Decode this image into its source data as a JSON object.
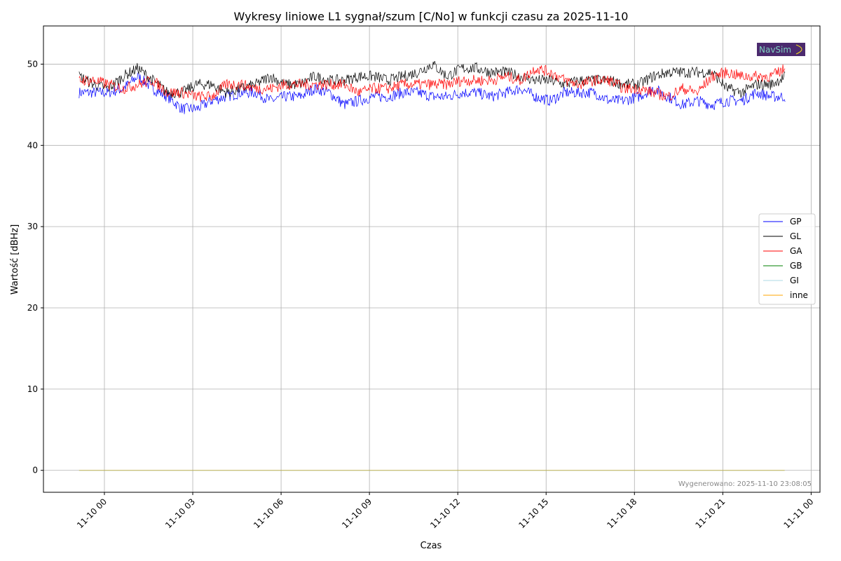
{
  "chart_data": {
    "type": "line",
    "title": "Wykresy liniowe L1 sygnał/szum [C/No] w funkcji czasu za 2025-11-10",
    "xlabel": "Czas",
    "ylabel": "Wartość [dBHz]",
    "x_unit": "hours since 2025-11-10 00:00",
    "xlim": [
      -2.07,
      24.3
    ],
    "ylim": [
      -2.7,
      54.7
    ],
    "grid": true,
    "legend_position": "center-right",
    "x_ticks": [
      {
        "value": 0,
        "label": "11-10 00"
      },
      {
        "value": 3,
        "label": "11-10 03"
      },
      {
        "value": 6,
        "label": "11-10 06"
      },
      {
        "value": 9,
        "label": "11-10 09"
      },
      {
        "value": 12,
        "label": "11-10 12"
      },
      {
        "value": 15,
        "label": "11-10 15"
      },
      {
        "value": 18,
        "label": "11-10 18"
      },
      {
        "value": 21,
        "label": "11-10 21"
      },
      {
        "value": 24,
        "label": "11-11 00"
      }
    ],
    "y_ticks": [
      0,
      10,
      20,
      30,
      40,
      50
    ],
    "x_start": -0.86,
    "x_step": 0.5,
    "series": [
      {
        "name": "GP",
        "color": "#0000ff",
        "values": [
          46.5,
          46.5,
          46.5,
          47,
          48.5,
          47,
          46,
          44.5,
          44.5,
          45.5,
          46,
          46.5,
          46.5,
          45.5,
          46,
          46,
          47,
          46.5,
          45,
          45.5,
          46,
          46,
          46.5,
          46.5,
          46,
          46,
          46.5,
          46.5,
          46,
          46.5,
          47,
          46,
          45.5,
          46.5,
          46.5,
          46.5,
          45.5,
          45.5,
          46,
          47,
          46,
          45,
          45.5,
          45,
          45.5,
          45.5,
          46.5,
          46,
          46
        ]
      },
      {
        "name": "GL",
        "color": "#000000",
        "values": [
          48.5,
          47.5,
          47,
          48.5,
          49.5,
          48,
          46.5,
          46.5,
          47.5,
          47.5,
          46.5,
          47,
          47.5,
          48.5,
          47.5,
          47.5,
          48.5,
          48,
          48,
          48.5,
          48.5,
          48,
          48.5,
          49,
          50,
          48.5,
          49.5,
          49.5,
          49,
          49,
          48.5,
          48,
          48,
          47.5,
          48,
          48,
          48,
          47.5,
          47.5,
          48.5,
          49,
          49,
          49,
          49,
          47,
          46.5,
          47.5,
          47.5,
          48.5
        ]
      },
      {
        "name": "GA",
        "color": "#ff0000",
        "values": [
          48,
          48,
          47.5,
          47,
          47.5,
          48,
          46.5,
          46.5,
          46,
          46,
          47.5,
          47.5,
          47,
          47,
          47.5,
          47.5,
          47.5,
          47.5,
          47.5,
          46.5,
          47,
          47,
          47.5,
          47.5,
          47.5,
          47.5,
          48,
          48,
          48,
          48.5,
          48,
          49.5,
          49,
          48,
          47.5,
          48,
          48,
          47,
          47,
          46.5,
          46,
          47,
          46.5,
          48.5,
          49,
          48.5,
          48.5,
          48.5,
          49.5
        ]
      },
      {
        "name": "GB",
        "color": "#008000",
        "values": [
          0,
          0
        ]
      },
      {
        "name": "GI",
        "color": "#add8e6",
        "values": [
          0,
          0
        ]
      },
      {
        "name": "inne",
        "color": "#ffa500",
        "values": [
          0,
          0
        ]
      }
    ],
    "flat_series_x": [
      -0.86,
      23.1
    ],
    "annotation": "Wygenerowano: 2025-11-10 23:08:05",
    "logo_text": "NavSim"
  }
}
